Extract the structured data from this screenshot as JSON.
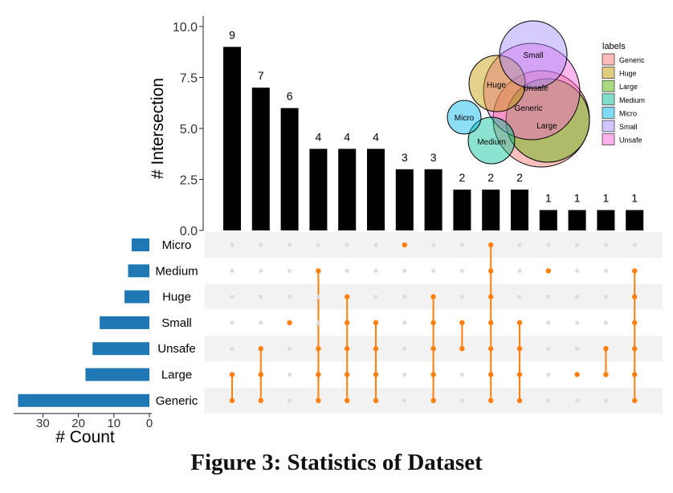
{
  "caption": "Figure 3: Statistics of Dataset",
  "colors": {
    "bar": "#000000",
    "set_bar": "#1f77b4",
    "dot_active": "#ff7f0e",
    "dot_inactive": "#dddddd",
    "stripe": "#f2f2f2"
  },
  "chart_data": [
    {
      "type": "bar",
      "name": "intersection-sizes",
      "ylabel": "# Intersection",
      "ylim": [
        0,
        10
      ],
      "yticks": [
        "0.0",
        "2.5",
        "5.0",
        "7.5",
        "10.0"
      ],
      "ytick_values": [
        0,
        2.5,
        5,
        7.5,
        10
      ],
      "values": [
        9,
        7,
        6,
        4,
        4,
        4,
        3,
        3,
        2,
        2,
        2,
        1,
        1,
        1,
        1
      ],
      "data_labels": [
        "9",
        "7",
        "6",
        "4",
        "4",
        "4",
        "3",
        "3",
        "2",
        "2",
        "2",
        "1",
        "1",
        "1",
        "1"
      ]
    },
    {
      "type": "matrix",
      "name": "intersection-membership",
      "sets": [
        "Micro",
        "Medium",
        "Huge",
        "Small",
        "Unsafe",
        "Large",
        "Generic"
      ],
      "columns": [
        [
          "Large",
          "Generic"
        ],
        [
          "Unsafe",
          "Large",
          "Generic"
        ],
        [
          "Small"
        ],
        [
          "Medium",
          "Unsafe",
          "Large",
          "Generic"
        ],
        [
          "Huge",
          "Small",
          "Unsafe",
          "Large",
          "Generic"
        ],
        [
          "Small",
          "Unsafe",
          "Large",
          "Generic"
        ],
        [
          "Micro"
        ],
        [
          "Huge",
          "Small",
          "Unsafe",
          "Large",
          "Generic"
        ],
        [
          "Small",
          "Unsafe"
        ],
        [
          "Micro",
          "Medium",
          "Huge",
          "Small",
          "Unsafe",
          "Large",
          "Generic"
        ],
        [
          "Small",
          "Unsafe",
          "Large",
          "Generic"
        ],
        [
          "Medium"
        ],
        [
          "Large"
        ],
        [
          "Unsafe",
          "Large"
        ],
        [
          "Medium",
          "Huge",
          "Small",
          "Unsafe",
          "Large",
          "Generic"
        ]
      ]
    },
    {
      "type": "bar",
      "orientation": "horizontal-reversed",
      "name": "set-sizes",
      "xlabel": "# Count",
      "categories": [
        "Micro",
        "Medium",
        "Huge",
        "Small",
        "Unsafe",
        "Large",
        "Generic"
      ],
      "values": [
        5,
        6,
        7,
        14,
        16,
        18,
        37
      ],
      "xlim": [
        0,
        38
      ],
      "xticks": [
        "30",
        "20",
        "10",
        "0"
      ],
      "xtick_values": [
        30,
        20,
        10,
        0
      ]
    },
    {
      "type": "venn",
      "name": "label-overlap",
      "legend_title": "labels",
      "legend_position": "top-right",
      "sets": [
        {
          "name": "Generic",
          "color": "#f8766d"
        },
        {
          "name": "Huge",
          "color": "#c49a00"
        },
        {
          "name": "Large",
          "color": "#53b400"
        },
        {
          "name": "Medium",
          "color": "#00c094"
        },
        {
          "name": "Micro",
          "color": "#00b6eb"
        },
        {
          "name": "Small",
          "color": "#a58aff"
        },
        {
          "name": "Unsafe",
          "color": "#fb61d7"
        }
      ],
      "circle_labels": [
        "Small",
        "Huge",
        "Unsafe",
        "Generic",
        "Micro",
        "Large",
        "Medium"
      ]
    }
  ]
}
